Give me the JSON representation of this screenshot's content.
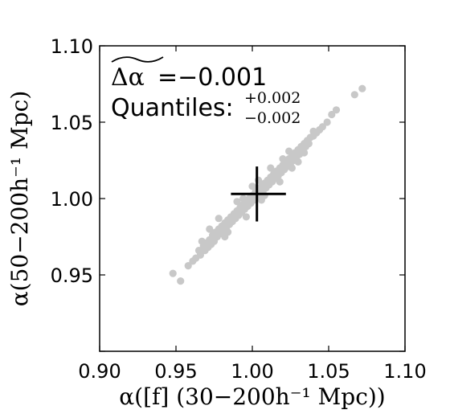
{
  "chart_data": {
    "type": "scatter",
    "title": "",
    "xlabel": "α([f]  (30−200h⁻¹ Mpc))",
    "ylabel": "α(50−200h⁻¹ Mpc)",
    "xlim": [
      0.9,
      1.1
    ],
    "ylim": [
      0.9,
      1.1
    ],
    "xticks": [
      0.9,
      0.95,
      1.0,
      1.05,
      1.1
    ],
    "yticks": [
      0.95,
      1.0,
      1.05,
      1.1
    ],
    "xtick_labels": [
      "0.90",
      "0.95",
      "1.00",
      "1.05",
      "1.10"
    ],
    "ytick_labels": [
      "0.95",
      "1.00",
      "1.05",
      "1.10"
    ],
    "grid": false,
    "point_color": "#c8c8c8",
    "marker_color": "#000000",
    "annotations": {
      "median_symbol": "Δα",
      "median_text": "=−0.001",
      "quantiles_label": "Quantiles:",
      "quantile_upper": "+0.002",
      "quantile_lower": "−0.002"
    },
    "crosshair": {
      "x": 1.003,
      "y": 1.003,
      "x_range": [
        0.986,
        1.022
      ],
      "y_range": [
        0.985,
        1.021
      ]
    },
    "series": [
      {
        "points": [
          [
            0.948,
            0.951
          ],
          [
            0.953,
            0.946
          ],
          [
            0.958,
            0.956
          ],
          [
            0.961,
            0.959
          ],
          [
            0.963,
            0.961
          ],
          [
            0.965,
            0.966
          ],
          [
            0.966,
            0.963
          ],
          [
            0.968,
            0.969
          ],
          [
            0.969,
            0.966
          ],
          [
            0.97,
            0.971
          ],
          [
            0.971,
            0.968
          ],
          [
            0.972,
            0.973
          ],
          [
            0.973,
            0.97
          ],
          [
            0.974,
            0.976
          ],
          [
            0.975,
            0.972
          ],
          [
            0.976,
            0.978
          ],
          [
            0.977,
            0.975
          ],
          [
            0.978,
            0.98
          ],
          [
            0.979,
            0.977
          ],
          [
            0.98,
            0.982
          ],
          [
            0.981,
            0.979
          ],
          [
            0.982,
            0.984
          ],
          [
            0.983,
            0.981
          ],
          [
            0.984,
            0.986
          ],
          [
            0.985,
            0.983
          ],
          [
            0.986,
            0.988
          ],
          [
            0.987,
            0.985
          ],
          [
            0.988,
            0.99
          ],
          [
            0.989,
            0.987
          ],
          [
            0.99,
            0.992
          ],
          [
            0.991,
            0.989
          ],
          [
            0.992,
            0.994
          ],
          [
            0.993,
            0.991
          ],
          [
            0.994,
            0.996
          ],
          [
            0.995,
            0.993
          ],
          [
            0.996,
            0.998
          ],
          [
            0.997,
            0.995
          ],
          [
            0.998,
            1.0
          ],
          [
            0.999,
            0.997
          ],
          [
            1.0,
            1.002
          ],
          [
            1.001,
            0.999
          ],
          [
            1.002,
            1.004
          ],
          [
            1.003,
            1.001
          ],
          [
            1.004,
            1.006
          ],
          [
            1.005,
            1.003
          ],
          [
            1.006,
            1.008
          ],
          [
            1.007,
            1.005
          ],
          [
            1.008,
            1.01
          ],
          [
            1.009,
            1.007
          ],
          [
            1.01,
            1.012
          ],
          [
            1.011,
            1.009
          ],
          [
            1.012,
            1.014
          ],
          [
            1.013,
            1.011
          ],
          [
            1.014,
            1.016
          ],
          [
            1.015,
            1.013
          ],
          [
            1.016,
            1.018
          ],
          [
            1.017,
            1.015
          ],
          [
            1.018,
            1.02
          ],
          [
            1.019,
            1.017
          ],
          [
            1.02,
            1.022
          ],
          [
            1.021,
            1.019
          ],
          [
            1.022,
            1.024
          ],
          [
            1.023,
            1.021
          ],
          [
            1.024,
            1.026
          ],
          [
            1.025,
            1.023
          ],
          [
            1.026,
            1.028
          ],
          [
            1.027,
            1.025
          ],
          [
            1.028,
            1.03
          ],
          [
            1.029,
            1.027
          ],
          [
            1.03,
            1.032
          ],
          [
            1.031,
            1.029
          ],
          [
            1.032,
            1.034
          ],
          [
            1.033,
            1.031
          ],
          [
            1.034,
            1.036
          ],
          [
            1.035,
            1.034
          ],
          [
            1.036,
            1.038
          ],
          [
            1.037,
            1.036
          ],
          [
            1.038,
            1.04
          ],
          [
            1.04,
            1.041
          ],
          [
            1.042,
            1.043
          ],
          [
            1.044,
            1.045
          ],
          [
            1.046,
            1.047
          ],
          [
            1.049,
            1.05
          ],
          [
            1.052,
            1.055
          ],
          [
            1.055,
            1.058
          ],
          [
            0.978,
            0.987
          ],
          [
            0.984,
            0.978
          ],
          [
            0.99,
            0.998
          ],
          [
            0.996,
            0.988
          ],
          [
            1.0,
            1.008
          ],
          [
            1.006,
            0.999
          ],
          [
            1.012,
            1.02
          ],
          [
            1.018,
            1.011
          ],
          [
            1.024,
            1.031
          ],
          [
            1.03,
            1.024
          ],
          [
            0.972,
            0.98
          ],
          [
            0.982,
            0.975
          ],
          [
            0.994,
            1.0
          ],
          [
            1.008,
            1.002
          ],
          [
            1.02,
            1.026
          ],
          [
            1.034,
            1.03
          ],
          [
            0.967,
            0.972
          ],
          [
            1.004,
            1.012
          ],
          [
            1.026,
            1.02
          ],
          [
            1.04,
            1.044
          ],
          [
            1.067,
            1.068
          ],
          [
            1.072,
            1.072
          ]
        ]
      }
    ]
  }
}
